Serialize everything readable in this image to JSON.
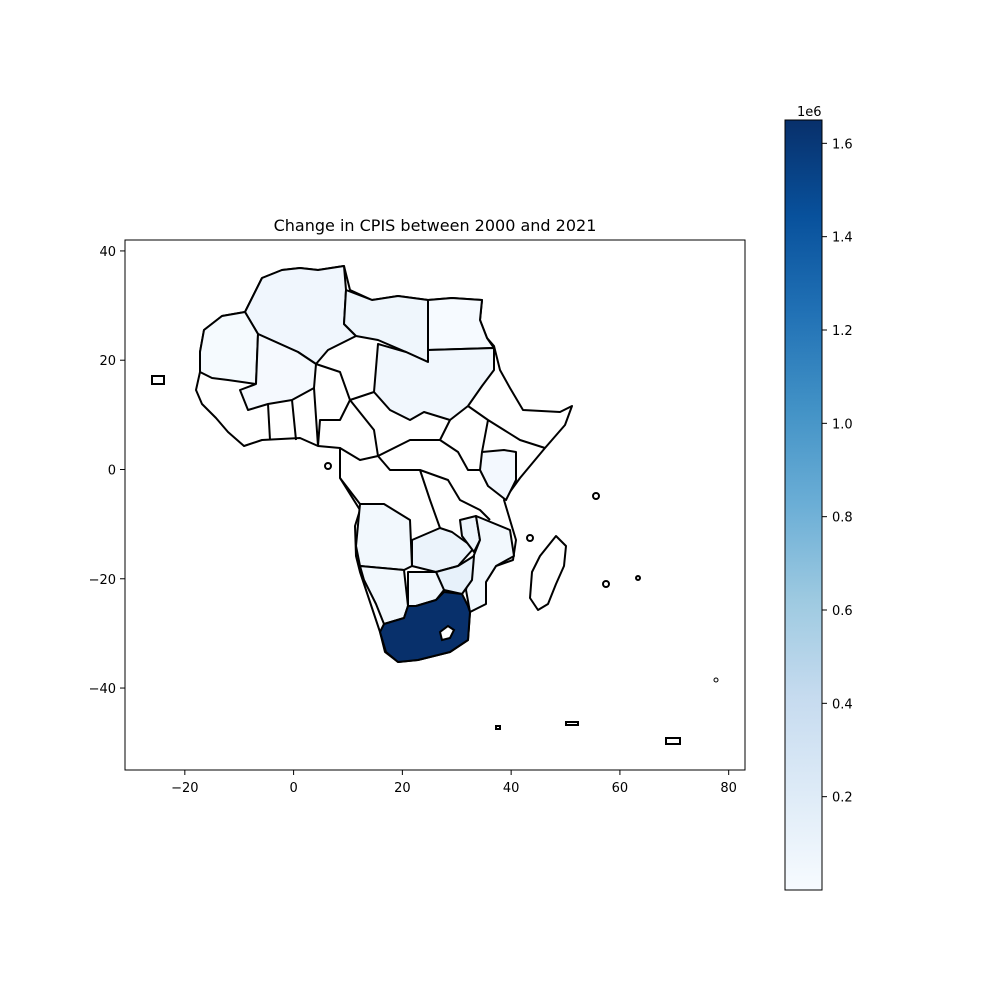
{
  "chart_data": {
    "type": "choropleth",
    "title": "Change in CPIS between 2000 and 2021",
    "xlim": [
      -31,
      83
    ],
    "ylim": [
      -55,
      42
    ],
    "xticks": [
      -20,
      0,
      20,
      40,
      60,
      80
    ],
    "xtick_labels": [
      "−20",
      "0",
      "20",
      "40",
      "60",
      "80"
    ],
    "yticks": [
      40,
      20,
      0,
      -20,
      -40
    ],
    "ytick_labels": [
      "40",
      "20",
      "0",
      "−20",
      "−40"
    ],
    "colorbar": {
      "cmap": "Blues",
      "min": 0,
      "max": 1650000,
      "ticks": [
        200000,
        400000,
        600000,
        800000,
        1000000,
        1200000,
        1400000,
        1600000
      ],
      "tick_labels": [
        "0.2",
        "0.4",
        "0.6",
        "0.8",
        "1.0",
        "1.2",
        "1.4",
        "1.6"
      ],
      "offset_label": "1e6"
    },
    "regions": [
      {
        "name": "South Africa",
        "value": 1650000
      },
      {
        "name": "Zimbabwe",
        "value": 130000
      },
      {
        "name": "Zambia",
        "value": 100000
      },
      {
        "name": "Malawi",
        "value": 80000
      },
      {
        "name": "Algeria",
        "value": 60000
      },
      {
        "name": "Libya",
        "value": 70000
      },
      {
        "name": "Sudan",
        "value": 50000
      },
      {
        "name": "Angola",
        "value": 45000
      },
      {
        "name": "Namibia",
        "value": 45000
      },
      {
        "name": "Botswana",
        "value": 50000
      },
      {
        "name": "Mozambique",
        "value": 40000
      },
      {
        "name": "Kenya",
        "value": 35000
      },
      {
        "name": "Mali",
        "value": 20000
      },
      {
        "name": "Mauritania",
        "value": 15000
      },
      {
        "name": "Egypt",
        "value": 8000
      }
    ]
  }
}
